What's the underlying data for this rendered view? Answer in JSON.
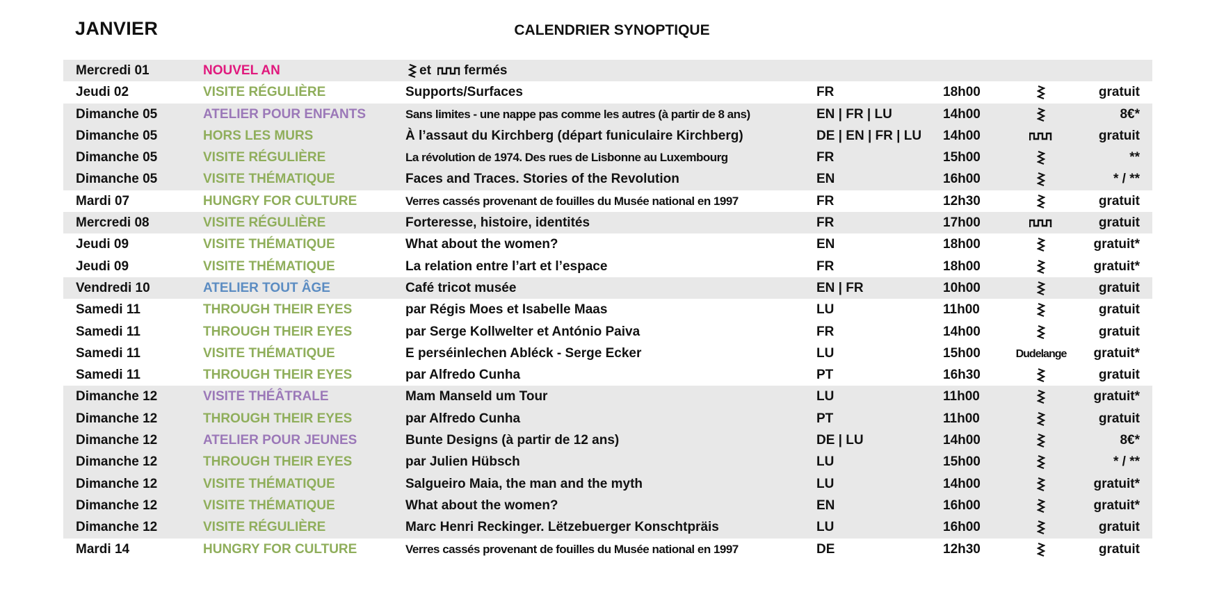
{
  "header": {
    "month": "JANVIER",
    "title": "CALENDRIER SYNOPTIQUE"
  },
  "colors": {
    "pink": "#e0197d",
    "green": "#8fae5b",
    "purple": "#9b78b8",
    "blue": "#5b8cc2",
    "shade": "#e8e8e8"
  },
  "closed_row": {
    "date": "Mercredi 01",
    "type": "NOUVEL AN",
    "text_et": "et",
    "text_fermes": "fermés",
    "icons": [
      "zigzag-icon",
      "square-wave-icon"
    ]
  },
  "rows": [
    {
      "date": "Jeudi 02",
      "type": "VISITE RÉGULIÈRE",
      "color": "green",
      "desc": "Supports/Surfaces",
      "lang": "FR",
      "time": "18h00",
      "loc": "zigzag-icon",
      "price": "gratuit"
    },
    {
      "date": "Dimanche 05",
      "type": "ATELIER POUR ENFANTS",
      "color": "purple",
      "desc": "Sans limites - une nappe pas comme les autres (à partir de 8 ans)",
      "narrow": true,
      "lang": "EN | FR | LU",
      "time": "14h00",
      "loc": "zigzag-icon",
      "price": "8€*"
    },
    {
      "date": "Dimanche 05",
      "type": "HORS LES MURS",
      "color": "green",
      "desc": "À l’assaut du Kirchberg (départ funiculaire Kirchberg)",
      "lang": "DE | EN | FR | LU",
      "time": "14h00",
      "loc": "square-wave-icon",
      "price": "gratuit"
    },
    {
      "date": "Dimanche 05",
      "type": "VISITE RÉGULIÈRE",
      "color": "green",
      "desc": "La révolution de 1974. Des rues de Lisbonne au Luxembourg",
      "narrow": true,
      "lang": "FR",
      "time": "15h00",
      "loc": "zigzag-icon",
      "price": "**"
    },
    {
      "date": "Dimanche 05",
      "type": "VISITE THÉMATIQUE",
      "color": "green",
      "desc": "Faces and Traces. Stories of the Revolution",
      "lang": "EN",
      "time": "16h00",
      "loc": "zigzag-icon",
      "price": "* / **"
    },
    {
      "date": "Mardi 07",
      "type": "HUNGRY FOR CULTURE",
      "color": "green",
      "desc": "Verres cassés provenant de fouilles du Musée national en 1997",
      "narrow": true,
      "lang": "FR",
      "time": "12h30",
      "loc": "zigzag-icon",
      "price": "gratuit"
    },
    {
      "date": "Mercredi 08",
      "type": "VISITE RÉGULIÈRE",
      "color": "green",
      "desc": "Forteresse, histoire, identités",
      "lang": "FR",
      "time": "17h00",
      "loc": "square-wave-icon",
      "price": "gratuit"
    },
    {
      "date": "Jeudi 09",
      "type": "VISITE THÉMATIQUE",
      "color": "green",
      "desc": "What about the women?",
      "lang": "EN",
      "time": "18h00",
      "loc": "zigzag-icon",
      "price": "gratuit*"
    },
    {
      "date": "Jeudi 09",
      "type": "VISITE THÉMATIQUE",
      "color": "green",
      "desc": "La relation entre l’art et l’espace",
      "lang": "FR",
      "time": "18h00",
      "loc": "zigzag-icon",
      "price": "gratuit*"
    },
    {
      "date": "Vendredi 10",
      "type": "ATELIER TOUT ÂGE",
      "color": "blue",
      "desc": "Café tricot musée",
      "lang": "EN | FR",
      "time": "10h00",
      "loc": "zigzag-icon",
      "price": "gratuit"
    },
    {
      "date": "Samedi 11",
      "type": "THROUGH THEIR EYES",
      "color": "green",
      "desc": "par Régis Moes et Isabelle Maas",
      "lang": "LU",
      "time": "11h00",
      "loc": "zigzag-icon",
      "price": "gratuit"
    },
    {
      "date": "Samedi 11",
      "type": "THROUGH THEIR EYES",
      "color": "green",
      "desc": "par Serge Kollwelter et António Paiva",
      "lang": "FR",
      "time": "14h00",
      "loc": "zigzag-icon",
      "price": "gratuit"
    },
    {
      "date": "Samedi 11",
      "type": "VISITE THÉMATIQUE",
      "color": "green",
      "desc": "E perséinlechen Abléck - Serge Ecker",
      "lang": "LU",
      "time": "15h00",
      "loc_text": "Dudelange",
      "price": "gratuit*"
    },
    {
      "date": "Samedi 11",
      "type": "THROUGH THEIR EYES",
      "color": "green",
      "desc": "par Alfredo Cunha",
      "lang": "PT",
      "time": "16h30",
      "loc": "zigzag-icon",
      "price": "gratuit"
    },
    {
      "date": "Dimanche 12",
      "type": "VISITE THÉÂTRALE",
      "color": "purple",
      "desc": "Mam Manseld um Tour",
      "lang": "LU",
      "time": "11h00",
      "loc": "zigzag-icon",
      "price": "gratuit*"
    },
    {
      "date": "Dimanche 12",
      "type": "THROUGH THEIR EYES",
      "color": "green",
      "desc": "par Alfredo Cunha",
      "lang": "PT",
      "time": "11h00",
      "loc": "zigzag-icon",
      "price": "gratuit"
    },
    {
      "date": "Dimanche 12",
      "type": "ATELIER POUR JEUNES",
      "color": "purple",
      "desc": "Bunte Designs (à partir de 12 ans)",
      "lang": "DE | LU",
      "time": "14h00",
      "loc": "zigzag-icon",
      "price": "8€*"
    },
    {
      "date": "Dimanche 12",
      "type": "THROUGH THEIR EYES",
      "color": "green",
      "desc": "par Julien Hübsch",
      "lang": "LU",
      "time": "15h00",
      "loc": "zigzag-icon",
      "price": "* / **"
    },
    {
      "date": "Dimanche 12",
      "type": "VISITE THÉMATIQUE",
      "color": "green",
      "desc": "Salgueiro Maia, the man and the myth",
      "lang": "LU",
      "time": "14h00",
      "loc": "zigzag-icon",
      "price": "gratuit*"
    },
    {
      "date": "Dimanche 12",
      "type": "VISITE THÉMATIQUE",
      "color": "green",
      "desc": "What about the women?",
      "lang": "EN",
      "time": "16h00",
      "loc": "zigzag-icon",
      "price": "gratuit*"
    },
    {
      "date": "Dimanche 12",
      "type": "VISITE RÉGULIÈRE",
      "color": "green",
      "desc": "Marc Henri Reckinger. Lëtzebuerger Konschtpräis",
      "lang": "LU",
      "time": "16h00",
      "loc": "zigzag-icon",
      "price": "gratuit"
    },
    {
      "date": "Mardi 14",
      "type": "HUNGRY FOR CULTURE",
      "color": "green",
      "desc": "Verres cassés provenant de fouilles du Musée national en 1997",
      "narrow": true,
      "lang": "DE",
      "time": "12h30",
      "loc": "zigzag-icon",
      "price": "gratuit"
    }
  ]
}
